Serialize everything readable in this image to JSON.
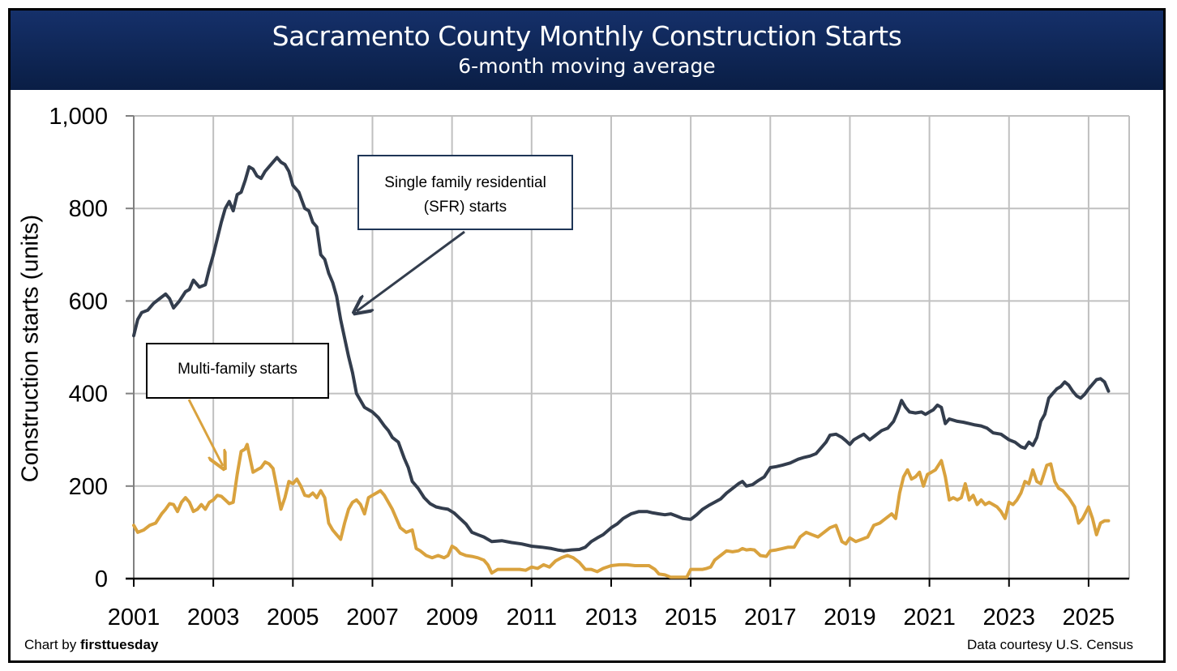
{
  "chart_data": {
    "type": "line",
    "title": "Sacramento County Monthly Construction Starts",
    "subtitle": "6-month moving average",
    "xlabel": "",
    "ylabel": "Construction starts (units)",
    "xlim": [
      2001,
      2026
    ],
    "ylim": [
      0,
      1000
    ],
    "grid": true,
    "x_ticks": [
      "2001",
      "2003",
      "2005",
      "2007",
      "2009",
      "2011",
      "2013",
      "2015",
      "2017",
      "2019",
      "2021",
      "2023",
      "2025"
    ],
    "y_ticks": [
      "0",
      "200",
      "400",
      "600",
      "800",
      "1,000"
    ],
    "series": [
      {
        "name": "Single family residential (SFR) starts",
        "color": "#333d4d",
        "x": [
          2001.0,
          2001.1,
          2001.2,
          2001.35,
          2001.5,
          2001.65,
          2001.8,
          2001.9,
          2002.0,
          2002.15,
          2002.3,
          2002.4,
          2002.5,
          2002.65,
          2002.8,
          2002.9,
          2003.0,
          2003.1,
          2003.2,
          2003.3,
          2003.4,
          2003.5,
          2003.6,
          2003.7,
          2003.8,
          2003.9,
          2004.0,
          2004.1,
          2004.2,
          2004.3,
          2004.4,
          2004.5,
          2004.6,
          2004.7,
          2004.8,
          2004.9,
          2005.0,
          2005.15,
          2005.3,
          2005.4,
          2005.5,
          2005.6,
          2005.7,
          2005.8,
          2005.9,
          2006.0,
          2006.1,
          2006.2,
          2006.3,
          2006.4,
          2006.5,
          2006.6,
          2006.7,
          2006.8,
          2007.0,
          2007.15,
          2007.3,
          2007.4,
          2007.5,
          2007.65,
          2007.8,
          2007.9,
          2008.0,
          2008.15,
          2008.3,
          2008.45,
          2008.6,
          2008.75,
          2008.9,
          2009.05,
          2009.2,
          2009.35,
          2009.5,
          2009.65,
          2009.8,
          2010.0,
          2010.25,
          2010.5,
          2010.75,
          2011.0,
          2011.25,
          2011.5,
          2011.65,
          2011.8,
          2012.0,
          2012.2,
          2012.35,
          2012.5,
          2012.65,
          2012.8,
          2013.0,
          2013.15,
          2013.3,
          2013.5,
          2013.7,
          2013.9,
          2014.05,
          2014.2,
          2014.35,
          2014.5,
          2014.65,
          2014.8,
          2015.0,
          2015.15,
          2015.3,
          2015.45,
          2015.6,
          2015.75,
          2015.9,
          2016.05,
          2016.2,
          2016.3,
          2016.4,
          2016.55,
          2016.7,
          2016.85,
          2017.0,
          2017.15,
          2017.3,
          2017.5,
          2017.7,
          2017.85,
          2018.0,
          2018.15,
          2018.3,
          2018.4,
          2018.5,
          2018.65,
          2018.8,
          2018.9,
          2019.0,
          2019.1,
          2019.2,
          2019.35,
          2019.5,
          2019.65,
          2019.8,
          2019.95,
          2020.1,
          2020.2,
          2020.3,
          2020.4,
          2020.5,
          2020.65,
          2020.8,
          2020.9,
          2021.0,
          2021.1,
          2021.2,
          2021.3,
          2021.4,
          2021.5,
          2021.7,
          2021.85,
          2022.0,
          2022.15,
          2022.3,
          2022.45,
          2022.6,
          2022.8,
          2023.0,
          2023.15,
          2023.3,
          2023.4,
          2023.5,
          2023.6,
          2023.7,
          2023.8,
          2023.9,
          2024.0,
          2024.1,
          2024.2,
          2024.3,
          2024.4,
          2024.5,
          2024.6,
          2024.7,
          2024.8,
          2024.9,
          2025.0,
          2025.1,
          2025.2,
          2025.3,
          2025.4,
          2025.5
        ],
        "values": [
          525,
          560,
          575,
          580,
          595,
          605,
          615,
          605,
          585,
          600,
          620,
          625,
          645,
          630,
          635,
          670,
          700,
          735,
          770,
          800,
          815,
          795,
          830,
          835,
          860,
          890,
          885,
          870,
          865,
          880,
          890,
          900,
          910,
          900,
          895,
          880,
          850,
          835,
          800,
          795,
          770,
          760,
          700,
          690,
          660,
          640,
          610,
          560,
          520,
          480,
          445,
          400,
          385,
          370,
          360,
          348,
          330,
          320,
          305,
          295,
          260,
          240,
          210,
          195,
          175,
          162,
          155,
          152,
          150,
          142,
          130,
          118,
          100,
          95,
          90,
          80,
          82,
          78,
          75,
          70,
          68,
          65,
          62,
          60,
          62,
          63,
          68,
          80,
          88,
          95,
          110,
          118,
          130,
          140,
          145,
          145,
          142,
          140,
          138,
          140,
          135,
          130,
          128,
          138,
          150,
          158,
          165,
          172,
          185,
          195,
          205,
          210,
          200,
          203,
          212,
          220,
          240,
          242,
          245,
          250,
          258,
          262,
          265,
          270,
          285,
          295,
          310,
          312,
          305,
          298,
          290,
          300,
          305,
          312,
          300,
          310,
          320,
          325,
          340,
          360,
          385,
          370,
          360,
          358,
          360,
          355,
          360,
          365,
          375,
          370,
          335,
          345,
          340,
          338,
          335,
          332,
          330,
          325,
          315,
          312,
          300,
          295,
          285,
          282,
          295,
          288,
          305,
          340,
          355,
          390,
          400,
          410,
          415,
          425,
          418,
          405,
          395,
          390,
          398,
          410,
          420,
          430,
          432,
          425,
          405
        ]
      },
      {
        "name": "Multi-family starts",
        "color": "#d9a23e",
        "x": [
          2001.0,
          2001.1,
          2001.25,
          2001.4,
          2001.55,
          2001.7,
          2001.8,
          2001.9,
          2002.0,
          2002.1,
          2002.2,
          2002.3,
          2002.4,
          2002.5,
          2002.6,
          2002.7,
          2002.8,
          2002.9,
          2003.0,
          2003.1,
          2003.2,
          2003.3,
          2003.4,
          2003.5,
          2003.6,
          2003.7,
          2003.8,
          2003.85,
          2003.9,
          2004.0,
          2004.1,
          2004.2,
          2004.3,
          2004.4,
          2004.5,
          2004.6,
          2004.7,
          2004.8,
          2004.9,
          2005.0,
          2005.1,
          2005.2,
          2005.3,
          2005.4,
          2005.5,
          2005.6,
          2005.7,
          2005.8,
          2005.9,
          2006.0,
          2006.1,
          2006.2,
          2006.3,
          2006.4,
          2006.5,
          2006.6,
          2006.7,
          2006.8,
          2006.9,
          2007.0,
          2007.1,
          2007.2,
          2007.3,
          2007.4,
          2007.5,
          2007.6,
          2007.7,
          2007.85,
          2008.0,
          2008.1,
          2008.2,
          2008.35,
          2008.5,
          2008.65,
          2008.8,
          2008.9,
          2009.0,
          2009.1,
          2009.2,
          2009.35,
          2009.5,
          2009.65,
          2009.8,
          2009.9,
          2010.0,
          2010.15,
          2010.3,
          2010.5,
          2010.7,
          2010.85,
          2011.0,
          2011.15,
          2011.3,
          2011.45,
          2011.6,
          2011.75,
          2011.9,
          2012.05,
          2012.2,
          2012.35,
          2012.5,
          2012.65,
          2012.8,
          2013.0,
          2013.2,
          2013.4,
          2013.6,
          2013.8,
          2013.95,
          2014.1,
          2014.2,
          2014.35,
          2014.5,
          2014.7,
          2014.9,
          2015.0,
          2015.15,
          2015.3,
          2015.4,
          2015.5,
          2015.6,
          2015.75,
          2015.9,
          2016.05,
          2016.2,
          2016.3,
          2016.4,
          2016.5,
          2016.6,
          2016.75,
          2016.9,
          2017.0,
          2017.15,
          2017.3,
          2017.45,
          2017.6,
          2017.75,
          2017.9,
          2018.05,
          2018.2,
          2018.35,
          2018.5,
          2018.65,
          2018.8,
          2018.9,
          2019.0,
          2019.15,
          2019.3,
          2019.45,
          2019.6,
          2019.75,
          2019.9,
          2020.05,
          2020.15,
          2020.25,
          2020.35,
          2020.45,
          2020.55,
          2020.65,
          2020.75,
          2020.85,
          2020.95,
          2021.05,
          2021.15,
          2021.3,
          2021.4,
          2021.5,
          2021.6,
          2021.7,
          2021.8,
          2021.9,
          2022.0,
          2022.1,
          2022.2,
          2022.3,
          2022.4,
          2022.5,
          2022.6,
          2022.7,
          2022.8,
          2022.9,
          2023.0,
          2023.1,
          2023.2,
          2023.3,
          2023.4,
          2023.5,
          2023.6,
          2023.7,
          2023.8,
          2023.95,
          2024.05,
          2024.15,
          2024.25,
          2024.35,
          2024.5,
          2024.65,
          2024.75,
          2024.85,
          2025.0,
          2025.1,
          2025.2,
          2025.3,
          2025.4,
          2025.5
        ],
        "values": [
          115,
          100,
          105,
          115,
          120,
          140,
          150,
          162,
          160,
          145,
          165,
          175,
          165,
          145,
          150,
          160,
          150,
          165,
          170,
          180,
          178,
          170,
          162,
          165,
          225,
          275,
          280,
          290,
          270,
          230,
          235,
          240,
          252,
          248,
          238,
          195,
          150,
          175,
          210,
          205,
          215,
          200,
          180,
          178,
          185,
          175,
          190,
          175,
          120,
          105,
          95,
          85,
          120,
          150,
          165,
          170,
          160,
          140,
          175,
          180,
          185,
          190,
          180,
          165,
          150,
          130,
          110,
          100,
          105,
          65,
          60,
          50,
          45,
          50,
          45,
          50,
          70,
          65,
          55,
          50,
          48,
          45,
          40,
          30,
          12,
          20,
          20,
          20,
          20,
          18,
          25,
          22,
          30,
          25,
          38,
          45,
          50,
          45,
          35,
          20,
          20,
          15,
          22,
          28,
          30,
          30,
          28,
          28,
          28,
          20,
          10,
          8,
          3,
          3,
          3,
          20,
          20,
          20,
          22,
          25,
          40,
          50,
          60,
          58,
          60,
          65,
          62,
          63,
          62,
          50,
          48,
          60,
          62,
          65,
          68,
          68,
          90,
          100,
          95,
          90,
          100,
          110,
          115,
          80,
          75,
          88,
          80,
          85,
          90,
          115,
          120,
          130,
          140,
          130,
          185,
          220,
          235,
          215,
          220,
          230,
          200,
          225,
          230,
          235,
          255,
          220,
          170,
          175,
          170,
          175,
          205,
          170,
          180,
          160,
          170,
          160,
          165,
          160,
          155,
          145,
          130,
          165,
          160,
          170,
          185,
          210,
          205,
          235,
          210,
          205,
          245,
          248,
          210,
          195,
          190,
          175,
          155,
          120,
          130,
          155,
          130,
          95,
          120,
          125,
          125
        ]
      }
    ],
    "annotations": [
      {
        "text": "Single family residential (SFR) starts",
        "points_to": "SFR series near 2006.5"
      },
      {
        "text": "Multi-family starts",
        "points_to": "Multi-family series near 2003.3"
      }
    ]
  },
  "header": {
    "title": "Sacramento County Monthly Construction Starts",
    "subtitle": "6-month moving average"
  },
  "annotations": {
    "sfr_line1": "Single family residential",
    "sfr_line2": "(SFR) starts",
    "mf": "Multi-family starts"
  },
  "footer": {
    "credit_prefix": "Chart by ",
    "credit_brand": "firsttuesday",
    "source": "Data courtesy U.S. Census"
  }
}
